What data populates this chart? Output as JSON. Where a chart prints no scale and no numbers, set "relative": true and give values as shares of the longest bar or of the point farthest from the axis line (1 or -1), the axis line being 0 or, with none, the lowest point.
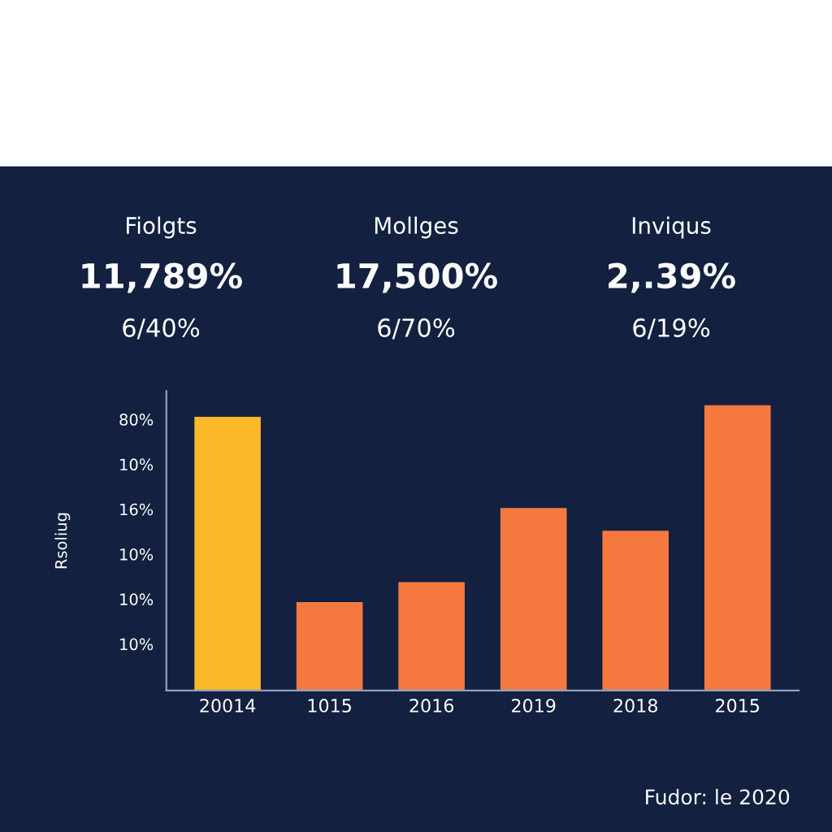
{
  "chart_data": [
    {
      "type": "other",
      "annotations": [
        "Fiolgts",
        "11,789%",
        "6/40%",
        "Mollges",
        "17,500%",
        "6/70%",
        "Inviqus",
        "2,.39%",
        "6/19%"
      ]
    },
    {
      "type": "bar",
      "relative": true,
      "ylabel": "Rsoliug",
      "categories": [
        "20014",
        "1015",
        "2016",
        "2019",
        "2018",
        "2015"
      ],
      "values": [
        0.96,
        0.31,
        0.38,
        0.64,
        0.56,
        1
      ],
      "colors": [
        "#fbb829",
        "#f5793f",
        "#f5793f",
        "#f5793f",
        "#f5793f",
        "#f5793f"
      ],
      "annotations": [
        "80%",
        "10%",
        "16%",
        "10%",
        "10%",
        "10%",
        "Fudor: le 2020"
      ]
    }
  ]
}
